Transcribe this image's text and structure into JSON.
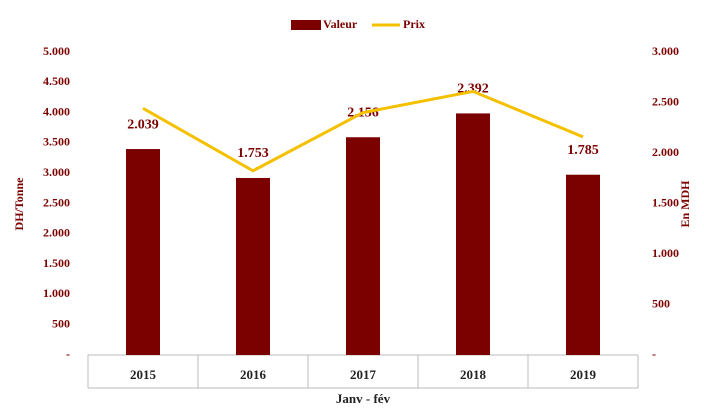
{
  "chart_data": {
    "type": "bar_line",
    "categories": [
      "2015",
      "2016",
      "2017",
      "2018",
      "2019"
    ],
    "xlabel": "Janv - fév",
    "ylabel": "DH/Tonne",
    "y2label": "En MDH",
    "series": [
      {
        "name": "Valeur",
        "type": "bar",
        "axis": "y2",
        "color": "#7b0000",
        "values": [
          2039,
          1753,
          2156,
          2392,
          1785
        ],
        "value_labels": [
          "2.039",
          "1.753",
          "2.156",
          "2.392",
          "1.785"
        ]
      },
      {
        "name": "Prix",
        "type": "line",
        "axis": "y",
        "color": "#f5c000",
        "values": [
          4070,
          3040,
          4000,
          4350,
          3600
        ]
      }
    ],
    "ylim": [
      0,
      5000
    ],
    "yticks": [
      {
        "value": 0,
        "label": "-"
      },
      500,
      {
        "value": 1000,
        "label": "1.000"
      },
      {
        "value": 1500,
        "label": "1.500"
      },
      {
        "value": 2000,
        "label": "2.000"
      },
      {
        "value": 2500,
        "label": "2.500"
      },
      {
        "value": 3000,
        "label": "3.000"
      },
      {
        "value": 3500,
        "label": "3.500"
      },
      {
        "value": 4000,
        "label": "4.000"
      },
      {
        "value": 4500,
        "label": "4.500"
      },
      {
        "value": 5000,
        "label": "5.000"
      }
    ],
    "y2lim": [
      0,
      3000
    ],
    "y2ticks": [
      {
        "value": 0,
        "label": "-"
      },
      500,
      {
        "value": 1000,
        "label": "1.000"
      },
      {
        "value": 1500,
        "label": "1.500"
      },
      {
        "value": 2000,
        "label": "2.000"
      },
      {
        "value": 2500,
        "label": "2.500"
      },
      {
        "value": 3000,
        "label": "3.000"
      }
    ],
    "legend": "top"
  }
}
